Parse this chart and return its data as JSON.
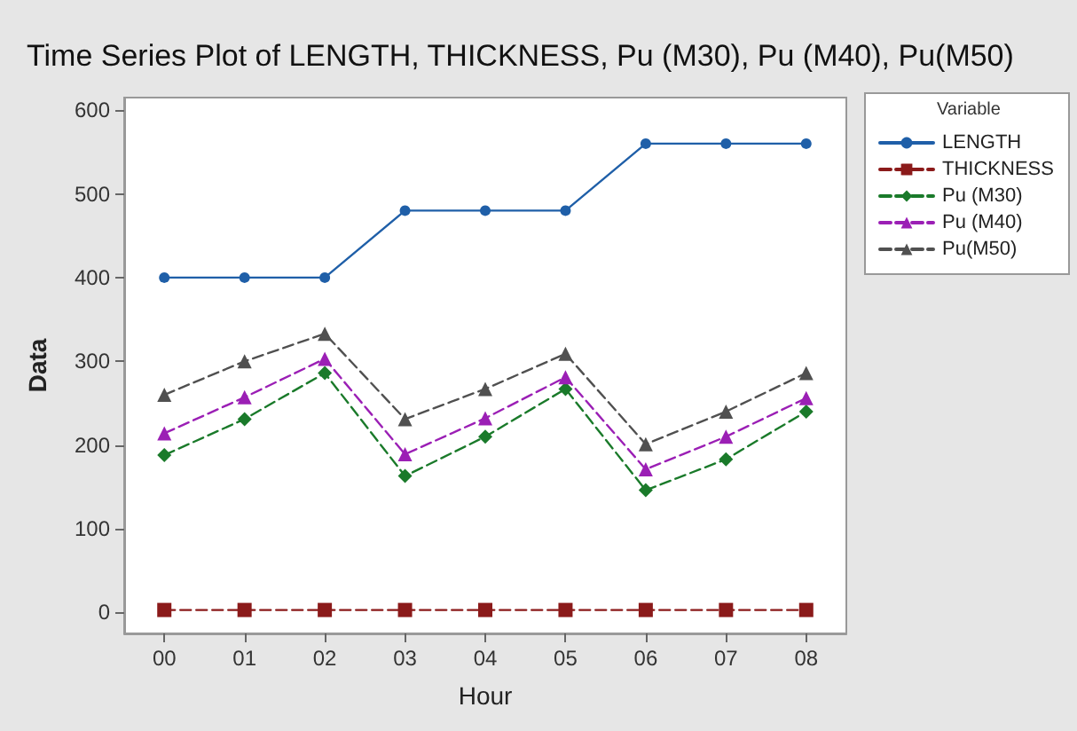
{
  "chart_data": {
    "type": "line",
    "title": "Time Series Plot of LENGTH, THICKNESS, Pu (M30), Pu (M40), Pu(M50)",
    "xlabel": "Hour",
    "ylabel": "Data",
    "legend_title": "Variable",
    "categories": [
      "00",
      "01",
      "02",
      "03",
      "04",
      "05",
      "06",
      "07",
      "08"
    ],
    "series": [
      {
        "name": "LENGTH",
        "color": "#1f5fa8",
        "marker": "circle",
        "line_style": "solid",
        "values": [
          400,
          400,
          400,
          480,
          480,
          480,
          560,
          560,
          560
        ]
      },
      {
        "name": "THICKNESS",
        "color": "#8b1a1a",
        "marker": "square",
        "line_style": "dashed",
        "values": [
          3,
          3,
          3,
          3,
          3,
          3,
          3,
          3,
          3
        ]
      },
      {
        "name": "Pu (M30)",
        "color": "#1a7a2a",
        "marker": "diamond",
        "line_style": "dashed",
        "values": [
          188,
          231,
          286,
          163,
          210,
          267,
          146,
          183,
          240
        ]
      },
      {
        "name": "Pu (M40)",
        "color": "#9b1fb5",
        "marker": "triangle",
        "line_style": "dashed",
        "values": [
          214,
          257,
          303,
          189,
          232,
          281,
          171,
          210,
          256
        ]
      },
      {
        "name": "Pu(M50)",
        "color": "#505050",
        "marker": "triangle",
        "line_style": "dashed",
        "values": [
          260,
          300,
          333,
          231,
          267,
          309,
          201,
          240,
          286
        ]
      }
    ],
    "ylim": [
      -25,
      615
    ],
    "yticks": [
      0,
      100,
      200,
      300,
      400,
      500,
      600
    ],
    "grid": false,
    "legend": "top right"
  }
}
